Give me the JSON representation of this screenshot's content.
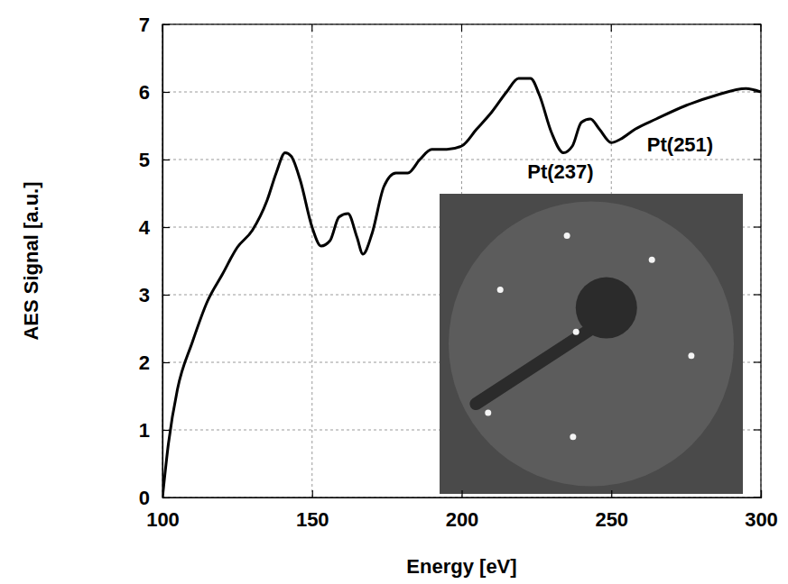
{
  "chart_data": {
    "type": "line",
    "x_label": "Energy [eV]",
    "y_label": "AES Signal [a.u.]",
    "x": [
      100,
      102,
      105,
      110,
      115,
      120,
      125,
      130,
      135,
      138,
      141,
      143,
      146,
      150,
      153,
      156,
      159,
      162,
      165,
      167,
      170,
      174,
      178,
      182,
      186,
      190,
      195,
      200,
      205,
      210,
      215,
      219,
      223,
      226,
      230,
      234,
      237,
      240,
      243,
      246,
      250,
      253,
      258,
      265,
      275,
      285,
      295,
      300
    ],
    "values": [
      0,
      0.8,
      1.6,
      2.3,
      2.9,
      3.3,
      3.7,
      3.95,
      4.4,
      4.8,
      5.1,
      5.05,
      4.7,
      4.0,
      3.72,
      3.8,
      4.15,
      4.2,
      3.85,
      3.6,
      3.9,
      4.6,
      4.8,
      4.8,
      5.0,
      5.15,
      5.15,
      5.2,
      5.45,
      5.7,
      6.0,
      6.2,
      6.2,
      5.95,
      5.4,
      5.1,
      5.2,
      5.55,
      5.6,
      5.45,
      5.25,
      5.3,
      5.45,
      5.6,
      5.8,
      5.95,
      6.05,
      6.0
    ],
    "color": "#000000",
    "xlim": [
      100,
      300
    ],
    "xticks": [
      100,
      150,
      200,
      250,
      300
    ],
    "ylim": [
      0,
      7
    ],
    "yticks": [
      0,
      1,
      2,
      3,
      4,
      5,
      6,
      7
    ],
    "grid": true,
    "annotations": [
      {
        "text": "Pt(237)",
        "x": 233,
        "y": 4.8
      },
      {
        "text": "Pt(251)",
        "x": 273,
        "y": 5.2
      }
    ]
  }
}
